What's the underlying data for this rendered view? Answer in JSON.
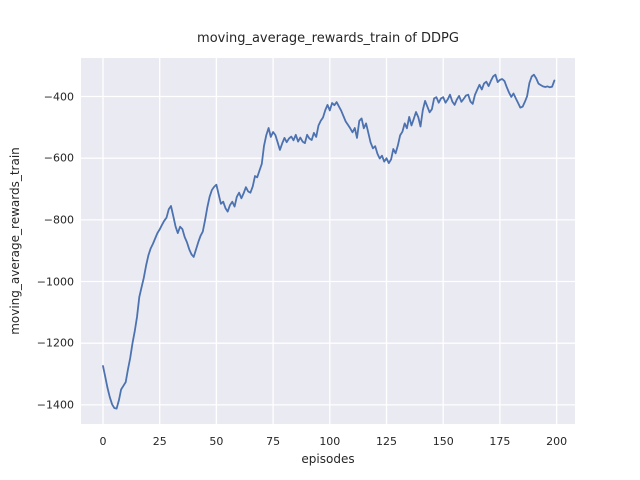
{
  "figure": {
    "title": "moving_average_rewards_train of DDPG",
    "xlabel": "episodes",
    "ylabel": "moving_average_rewards_train"
  },
  "colors": {
    "figure_background": "#ffffff",
    "axes_background": "#eaeaf2",
    "grid": "#ffffff",
    "line": "#4c72b0",
    "text": "#262626"
  },
  "chart_data": {
    "type": "line",
    "title": "moving_average_rewards_train of DDPG",
    "xlabel": "episodes",
    "ylabel": "moving_average_rewards_train",
    "x_ticks": [
      0,
      25,
      50,
      75,
      100,
      125,
      150,
      175,
      200
    ],
    "y_ticks": [
      -400,
      -600,
      -800,
      -1000,
      -1200,
      -1400
    ],
    "xlim": [
      -9.7,
      208.1
    ],
    "ylim": [
      -1462,
      -275
    ],
    "grid": true,
    "legend_position": "none",
    "series": [
      {
        "name": "moving_average_rewards_train",
        "color": "#4c72b0",
        "x_start": 0,
        "x_step": 1,
        "values": [
          -1274,
          -1310,
          -1345,
          -1375,
          -1398,
          -1410,
          -1412,
          -1385,
          -1350,
          -1338,
          -1326,
          -1284,
          -1248,
          -1200,
          -1160,
          -1115,
          -1050,
          -1018,
          -988,
          -948,
          -915,
          -893,
          -878,
          -860,
          -843,
          -831,
          -816,
          -803,
          -793,
          -765,
          -755,
          -788,
          -822,
          -843,
          -822,
          -830,
          -856,
          -872,
          -895,
          -912,
          -920,
          -896,
          -872,
          -852,
          -838,
          -800,
          -760,
          -725,
          -703,
          -693,
          -686,
          -718,
          -748,
          -741,
          -762,
          -773,
          -752,
          -741,
          -757,
          -725,
          -712,
          -730,
          -714,
          -694,
          -708,
          -712,
          -692,
          -658,
          -662,
          -640,
          -618,
          -560,
          -525,
          -502,
          -531,
          -515,
          -525,
          -548,
          -573,
          -552,
          -534,
          -548,
          -536,
          -530,
          -542,
          -524,
          -546,
          -533,
          -546,
          -551,
          -524,
          -536,
          -541,
          -518,
          -531,
          -494,
          -479,
          -468,
          -444,
          -427,
          -445,
          -421,
          -428,
          -418,
          -432,
          -446,
          -463,
          -481,
          -492,
          -503,
          -516,
          -502,
          -534,
          -479,
          -471,
          -503,
          -487,
          -519,
          -549,
          -568,
          -561,
          -585,
          -601,
          -592,
          -611,
          -600,
          -616,
          -604,
          -570,
          -584,
          -558,
          -526,
          -514,
          -487,
          -503,
          -466,
          -494,
          -473,
          -450,
          -467,
          -497,
          -444,
          -414,
          -432,
          -451,
          -441,
          -406,
          -402,
          -420,
          -406,
          -402,
          -420,
          -409,
          -394,
          -416,
          -427,
          -410,
          -398,
          -417,
          -408,
          -397,
          -394,
          -416,
          -424,
          -394,
          -378,
          -362,
          -377,
          -358,
          -352,
          -366,
          -349,
          -335,
          -329,
          -353,
          -346,
          -343,
          -350,
          -369,
          -387,
          -401,
          -390,
          -406,
          -421,
          -436,
          -433,
          -417,
          -399,
          -356,
          -335,
          -329,
          -341,
          -358,
          -363,
          -367,
          -369,
          -367,
          -370,
          -368,
          -348
        ]
      }
    ]
  }
}
